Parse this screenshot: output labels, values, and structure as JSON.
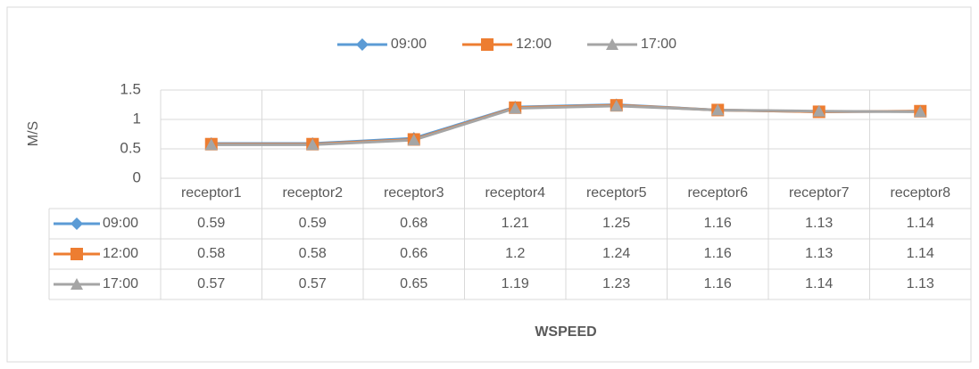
{
  "chart_data": {
    "type": "line",
    "categories": [
      "receptor1",
      "receptor2",
      "receptor3",
      "receptor4",
      "receptor5",
      "receptor6",
      "receptor7",
      "receptor8"
    ],
    "series": [
      {
        "name": "09:00",
        "color": "#5b9bd5",
        "marker": "diamond",
        "values": [
          0.59,
          0.59,
          0.68,
          1.21,
          1.25,
          1.16,
          1.13,
          1.14
        ]
      },
      {
        "name": "12:00",
        "color": "#ed7d31",
        "marker": "square",
        "values": [
          0.58,
          0.58,
          0.66,
          1.2,
          1.24,
          1.16,
          1.13,
          1.14
        ]
      },
      {
        "name": "17:00",
        "color": "#a5a5a5",
        "marker": "triangle",
        "values": [
          0.57,
          0.57,
          0.65,
          1.19,
          1.23,
          1.16,
          1.14,
          1.13
        ]
      }
    ],
    "y_label": "M/S",
    "x_label": "WSPEED",
    "ylim": [
      0,
      1.5
    ],
    "yticks": [
      0,
      0.5,
      1,
      1.5
    ],
    "grid": true,
    "legend": "top",
    "data_table": true
  }
}
